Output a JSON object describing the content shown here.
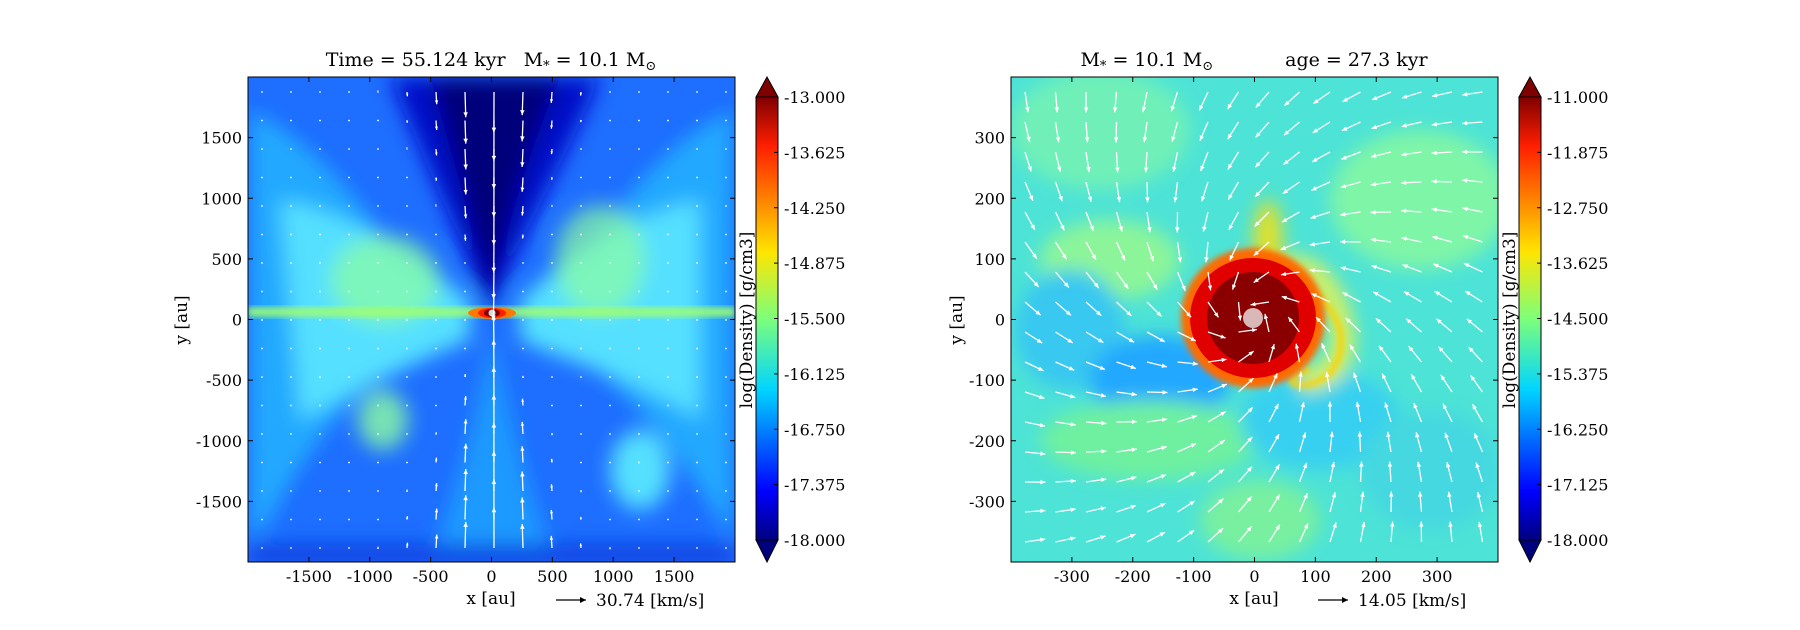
{
  "chart_data": [
    {
      "type": "heatmap",
      "title_left": "Time = 55.124 kyr",
      "title_right_prefix": "M",
      "title_right_sub": "*",
      "title_right_mid": " = 10.1 M",
      "title_right_sun": "⊙",
      "xlabel": "x [au]",
      "ylabel": "y [au]",
      "xlim": [
        -2000,
        2000
      ],
      "ylim": [
        -2000,
        2000
      ],
      "xticks": [
        -1500,
        -1000,
        -500,
        0,
        500,
        1000,
        1500
      ],
      "xtick_labels": [
        "-1500",
        "-1000",
        "-500",
        "0",
        "500",
        "1000",
        "1500"
      ],
      "yticks": [
        1500,
        1000,
        500,
        0,
        -500,
        -1000,
        -1500
      ],
      "ytick_labels": [
        "1500",
        "1000",
        "500",
        "0",
        "-500",
        "-1000",
        "-1500"
      ],
      "vector_key": "30.74 [km/s]",
      "colorbar": {
        "label": "log(Density) [g/cm3]",
        "min": -18.0,
        "max": -13.0,
        "ticks": [
          -13.0,
          -13.625,
          -14.25,
          -14.875,
          -15.5,
          -16.125,
          -16.75,
          -17.375,
          -18.0
        ],
        "tick_labels": [
          "-13.000",
          "-13.625",
          "-14.250",
          "-14.875",
          "-15.500",
          "-16.125",
          "-16.750",
          "-17.375",
          "-18.000"
        ]
      },
      "colormap": "jet"
    },
    {
      "type": "heatmap",
      "title_left_prefix": "M",
      "title_left_sub": "*",
      "title_left_mid": " = 10.1 M",
      "title_left_sun": "⊙",
      "title_right": "age = 27.3 kyr",
      "xlabel": "x [au]",
      "ylabel": "y [au]",
      "xlim": [
        -400,
        400
      ],
      "ylim": [
        -400,
        400
      ],
      "xticks": [
        -300,
        -200,
        -100,
        0,
        100,
        200,
        300
      ],
      "xtick_labels": [
        "-300",
        "-200",
        "-100",
        "0",
        "100",
        "200",
        "300"
      ],
      "yticks": [
        300,
        200,
        100,
        0,
        -100,
        -200,
        -300
      ],
      "ytick_labels": [
        "300",
        "200",
        "100",
        "0",
        "-100",
        "-200",
        "-300"
      ],
      "vector_key": "14.05 [km/s]",
      "colorbar": {
        "label": "log(Density) [g/cm3]",
        "min": -18.0,
        "max": -11.0,
        "ticks": [
          -11.0,
          -11.875,
          -12.75,
          -13.625,
          -14.5,
          -15.375,
          -16.25,
          -17.125,
          -18.0
        ],
        "tick_labels": [
          "-11.000",
          "-11.875",
          "-12.750",
          "-13.625",
          "-14.500",
          "-15.375",
          "-16.250",
          "-17.125",
          "-18.000"
        ]
      },
      "colormap": "jet"
    }
  ]
}
